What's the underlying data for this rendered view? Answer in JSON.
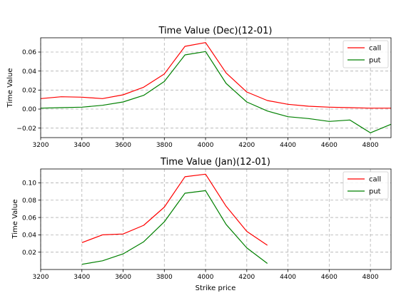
{
  "chart_data": [
    {
      "type": "line",
      "title": "Time Value (Dec)(12-01)",
      "xlabel": "",
      "ylabel": "Time Value",
      "xlim": [
        3200,
        4900
      ],
      "ylim": [
        -0.03,
        0.075
      ],
      "xticks": [
        "3200",
        "3400",
        "3600",
        "3800",
        "4000",
        "4200",
        "4400",
        "4600",
        "4800"
      ],
      "yticks": [
        "−0.02",
        "0.00",
        "0.02",
        "0.04",
        "0.06"
      ],
      "grid": true,
      "legend": "top-right",
      "series": [
        {
          "name": "call",
          "color": "#ff0000",
          "x": [
            3200,
            3300,
            3400,
            3500,
            3600,
            3700,
            3800,
            3900,
            4000,
            4100,
            4200,
            4300,
            4400,
            4500,
            4600,
            4700,
            4800,
            4900
          ],
          "values": [
            0.011,
            0.013,
            0.0125,
            0.011,
            0.015,
            0.023,
            0.037,
            0.066,
            0.07,
            0.038,
            0.018,
            0.009,
            0.005,
            0.003,
            0.002,
            0.0015,
            0.001,
            0.001
          ]
        },
        {
          "name": "put",
          "color": "#008000",
          "x": [
            3200,
            3300,
            3400,
            3500,
            3600,
            3700,
            3800,
            3900,
            4000,
            4100,
            4200,
            4300,
            4400,
            4500,
            4600,
            4700,
            4800,
            4900
          ],
          "values": [
            0.001,
            0.0015,
            0.002,
            0.004,
            0.0075,
            0.0145,
            0.029,
            0.057,
            0.0605,
            0.027,
            0.0075,
            -0.002,
            -0.008,
            -0.01,
            -0.013,
            -0.0115,
            -0.025,
            -0.016
          ]
        }
      ]
    },
    {
      "type": "line",
      "title": "Time Value (Jan)(12-01)",
      "xlabel": "Strike price",
      "ylabel": "Time Value",
      "xlim": [
        3200,
        4900
      ],
      "ylim": [
        0,
        0.116
      ],
      "xticks": [
        "3200",
        "3400",
        "3600",
        "3800",
        "4000",
        "4200",
        "4400",
        "4600",
        "4800"
      ],
      "yticks": [
        "0.02",
        "0.04",
        "0.06",
        "0.08",
        "0.10"
      ],
      "grid": true,
      "legend": "top-right",
      "series": [
        {
          "name": "call",
          "color": "#ff0000",
          "x": [
            3400,
            3500,
            3600,
            3700,
            3800,
            3900,
            4000,
            4100,
            4200,
            4300
          ],
          "values": [
            0.031,
            0.04,
            0.041,
            0.051,
            0.072,
            0.107,
            0.11,
            0.073,
            0.044,
            0.028
          ]
        },
        {
          "name": "put",
          "color": "#008000",
          "x": [
            3400,
            3500,
            3600,
            3700,
            3800,
            3900,
            4000,
            4100,
            4200,
            4300
          ],
          "values": [
            0.006,
            0.01,
            0.018,
            0.032,
            0.055,
            0.088,
            0.091,
            0.052,
            0.025,
            0.007
          ]
        }
      ]
    }
  ]
}
